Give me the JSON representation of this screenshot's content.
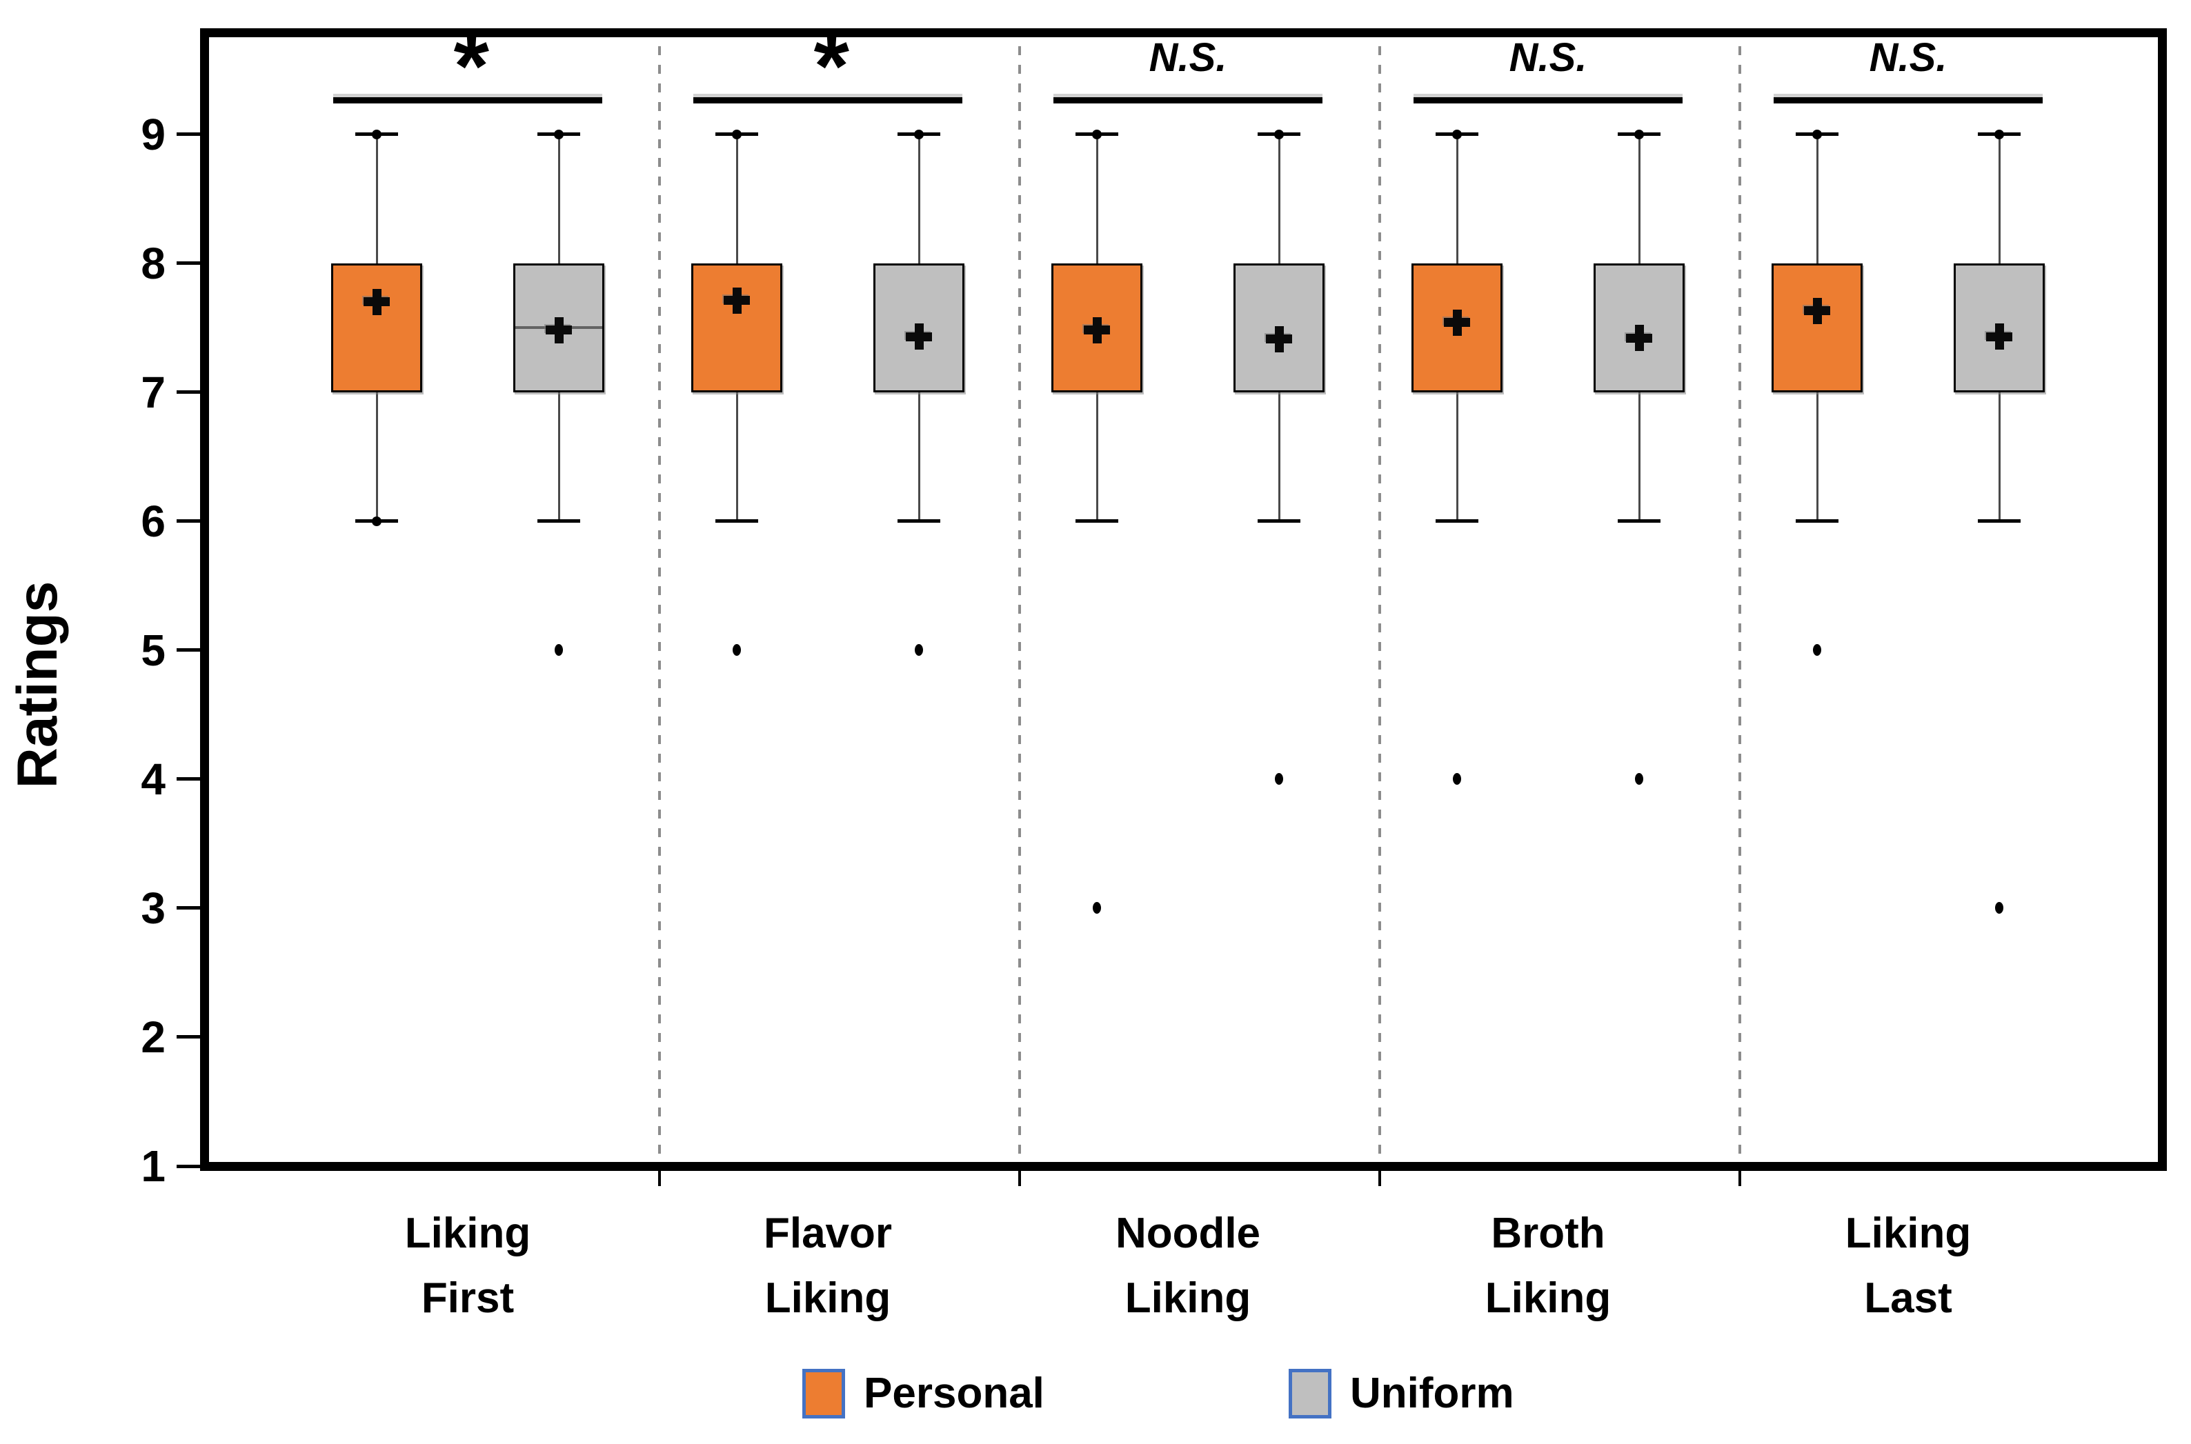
{
  "chart_data": {
    "type": "boxplot",
    "title": "",
    "ylabel": "Ratings",
    "xlabel": "",
    "ylim": [
      1,
      9.8
    ],
    "yticks": [
      1,
      2,
      3,
      4,
      5,
      6,
      7,
      8,
      9
    ],
    "grid": false,
    "legend_position": "bottom",
    "categories": [
      [
        "Liking",
        "First"
      ],
      [
        "Flavor",
        "Liking"
      ],
      [
        "Noodle",
        "Liking"
      ],
      [
        "Broth",
        "Liking"
      ],
      [
        "Liking",
        "Last"
      ]
    ],
    "series": [
      {
        "name": "Personal",
        "color": "#ED7D31"
      },
      {
        "name": "Uniform",
        "color": "#BFBFBF"
      }
    ],
    "significance_labels": [
      "*",
      "*",
      "N.S.",
      "N.S.",
      "N.S."
    ],
    "groups": [
      {
        "category": "Liking First",
        "significance": "*",
        "boxes": [
          {
            "series": "Personal",
            "whisker_low": 6,
            "q1": 7,
            "median": null,
            "q3": 8,
            "whisker_high": 9,
            "mean": 7.7,
            "outliers": [],
            "whisker_end_dots": [
              9,
              6
            ]
          },
          {
            "series": "Uniform",
            "whisker_low": 6,
            "q1": 7,
            "median": 7.5,
            "q3": 8,
            "whisker_high": 9,
            "mean": 7.48,
            "outliers": [
              5
            ],
            "whisker_end_dots": [
              9
            ]
          }
        ]
      },
      {
        "category": "Flavor Liking",
        "significance": "*",
        "boxes": [
          {
            "series": "Personal",
            "whisker_low": 6,
            "q1": 7,
            "median": null,
            "q3": 8,
            "whisker_high": 9,
            "mean": 7.71,
            "outliers": [
              5
            ],
            "whisker_end_dots": [
              9
            ]
          },
          {
            "series": "Uniform",
            "whisker_low": 6,
            "q1": 7,
            "median": null,
            "q3": 8,
            "whisker_high": 9,
            "mean": 7.43,
            "outliers": [
              5
            ],
            "whisker_end_dots": [
              9
            ]
          }
        ]
      },
      {
        "category": "Noodle Liking",
        "significance": "N.S.",
        "boxes": [
          {
            "series": "Personal",
            "whisker_low": 6,
            "q1": 7,
            "median": null,
            "q3": 8,
            "whisker_high": 9,
            "mean": 7.48,
            "outliers": [
              3
            ],
            "whisker_end_dots": [
              9
            ]
          },
          {
            "series": "Uniform",
            "whisker_low": 6,
            "q1": 7,
            "median": null,
            "q3": 8,
            "whisker_high": 9,
            "mean": 7.41,
            "outliers": [
              4
            ],
            "whisker_end_dots": [
              9
            ]
          }
        ]
      },
      {
        "category": "Broth Liking",
        "significance": "N.S.",
        "boxes": [
          {
            "series": "Personal",
            "whisker_low": 6,
            "q1": 7,
            "median": null,
            "q3": 8,
            "whisker_high": 9,
            "mean": 7.54,
            "outliers": [
              4
            ],
            "whisker_end_dots": [
              9
            ]
          },
          {
            "series": "Uniform",
            "whisker_low": 6,
            "q1": 7,
            "median": null,
            "q3": 8,
            "whisker_high": 9,
            "mean": 7.42,
            "outliers": [
              4
            ],
            "whisker_end_dots": [
              9
            ]
          }
        ]
      },
      {
        "category": "Liking Last",
        "significance": "N.S.",
        "boxes": [
          {
            "series": "Personal",
            "whisker_low": 6,
            "q1": 7,
            "median": null,
            "q3": 8,
            "whisker_high": 9,
            "mean": 7.63,
            "outliers": [
              5
            ],
            "whisker_end_dots": [
              9
            ]
          },
          {
            "series": "Uniform",
            "whisker_low": 6,
            "q1": 7,
            "median": null,
            "q3": 8,
            "whisker_high": 9,
            "mean": 7.43,
            "outliers": [
              3
            ],
            "whisker_end_dots": [
              9
            ]
          }
        ]
      }
    ],
    "legend": {
      "entries": [
        {
          "label": "Personal",
          "fill": "#ED7D31",
          "border": "#4472C4"
        },
        {
          "label": "Uniform",
          "fill": "#BFBFBF",
          "border": "#4472C4"
        }
      ]
    }
  }
}
